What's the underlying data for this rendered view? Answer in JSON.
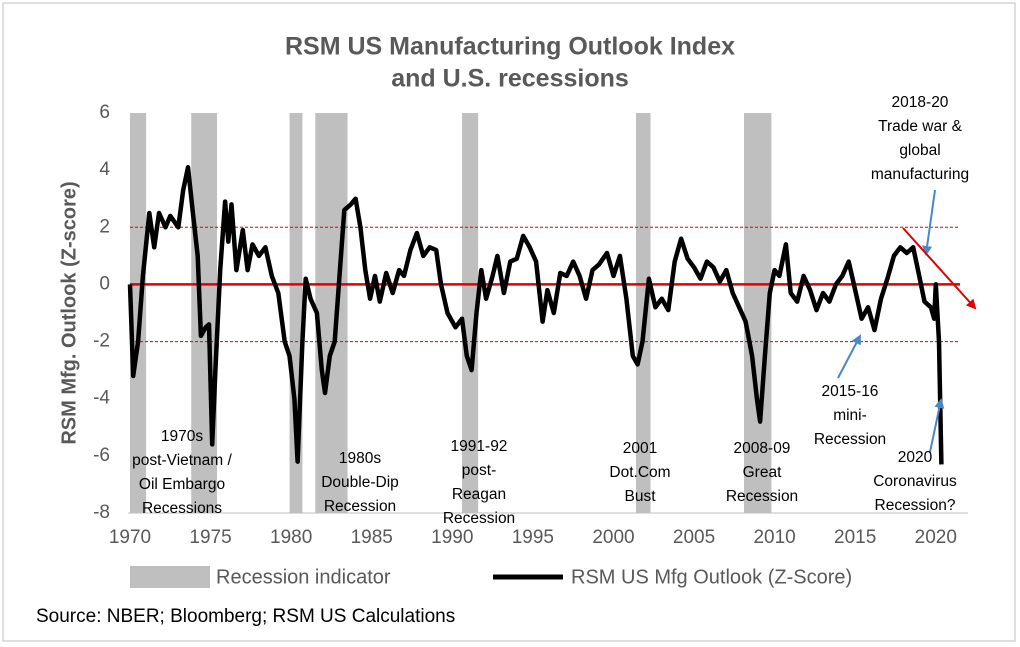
{
  "chart_data": {
    "type": "line",
    "title": [
      "RSM US Manufacturing Outlook Index",
      "and U.S. recessions"
    ],
    "y_label": "RSM Mfg. Outlook (Z-score)",
    "source": "Source: NBER; Bloomberg; RSM US Calculations",
    "xlim": [
      1970,
      2022
    ],
    "xticks": [
      1970,
      1975,
      1980,
      1985,
      1990,
      1995,
      2000,
      2005,
      2010,
      2015,
      2020
    ],
    "ylim": [
      -8,
      6
    ],
    "yticks": [
      -8,
      -6,
      -4,
      -2,
      0,
      2,
      4,
      6
    ],
    "reference_lines": {
      "color": "#e00000",
      "lines": [
        {
          "value": 0,
          "style": "solid"
        },
        {
          "value": 2,
          "style": "dashed"
        },
        {
          "value": -2,
          "style": "dashed"
        }
      ]
    },
    "recessions": {
      "name": "Recession indicator",
      "color": "#bfbfbf",
      "starts": [
        1970.0,
        1973.8,
        1979.9,
        1981.5,
        1990.6,
        2001.4,
        2008.1
      ],
      "ends": [
        1971.0,
        1975.4,
        1980.7,
        1983.5,
        1991.6,
        2002.3,
        2009.8
      ]
    },
    "series": [
      {
        "name": "RSM US Mfg Outlook (Z-Score)",
        "color": "#000000",
        "x": [
          1970.0,
          1970.2,
          1970.5,
          1970.8,
          1971.2,
          1971.5,
          1971.8,
          1972.2,
          1972.5,
          1973.0,
          1973.3,
          1973.6,
          1973.9,
          1974.2,
          1974.4,
          1974.7,
          1974.9,
          1975.1,
          1975.3,
          1975.6,
          1975.9,
          1976.1,
          1976.3,
          1976.6,
          1977.0,
          1977.3,
          1977.6,
          1978.0,
          1978.4,
          1978.8,
          1979.2,
          1979.6,
          1979.9,
          1980.2,
          1980.4,
          1980.7,
          1980.9,
          1981.2,
          1981.6,
          1981.9,
          1982.1,
          1982.4,
          1982.7,
          1983.0,
          1983.3,
          1983.7,
          1984.0,
          1984.3,
          1984.6,
          1984.9,
          1985.2,
          1985.5,
          1985.9,
          1986.3,
          1986.7,
          1987.0,
          1987.4,
          1987.8,
          1988.2,
          1988.6,
          1989.0,
          1989.3,
          1989.7,
          1990.2,
          1990.6,
          1990.9,
          1991.2,
          1991.5,
          1991.8,
          1992.1,
          1992.5,
          1992.8,
          1993.2,
          1993.6,
          1994.0,
          1994.4,
          1994.8,
          1995.2,
          1995.6,
          1995.9,
          1996.3,
          1996.7,
          1997.1,
          1997.5,
          1997.9,
          1998.3,
          1998.7,
          1999.1,
          1999.6,
          2000.0,
          2000.4,
          2000.8,
          2001.2,
          2001.5,
          2001.8,
          2002.2,
          2002.6,
          2003.0,
          2003.4,
          2003.8,
          2004.2,
          2004.6,
          2005.0,
          2005.4,
          2005.8,
          2006.2,
          2006.6,
          2007.0,
          2007.4,
          2007.8,
          2008.2,
          2008.6,
          2008.9,
          2009.1,
          2009.4,
          2009.7,
          2010.0,
          2010.3,
          2010.7,
          2011.0,
          2011.4,
          2011.8,
          2012.2,
          2012.6,
          2013.0,
          2013.4,
          2013.8,
          2014.2,
          2014.6,
          2015.0,
          2015.4,
          2015.8,
          2016.2,
          2016.6,
          2017.0,
          2017.4,
          2017.8,
          2018.2,
          2018.6,
          2018.9,
          2019.3,
          2019.7,
          2019.9,
          2020.0,
          2020.2,
          2020.35
        ],
        "values": [
          0,
          -3.2,
          -2.0,
          0.3,
          2.5,
          1.3,
          2.5,
          2.0,
          2.4,
          2.0,
          3.3,
          4.1,
          2.5,
          1.0,
          -1.8,
          -1.5,
          -1.4,
          -5.6,
          -3.0,
          0.5,
          2.9,
          1.5,
          2.8,
          0.5,
          1.9,
          0.5,
          1.4,
          1.0,
          1.3,
          0.3,
          -0.3,
          -2.0,
          -2.5,
          -4.0,
          -6.2,
          -2.0,
          0.2,
          -0.5,
          -1.0,
          -3.0,
          -3.8,
          -2.5,
          -2.0,
          0.3,
          2.6,
          2.8,
          3.0,
          2.0,
          0.5,
          -0.5,
          0.3,
          -0.6,
          0.4,
          -0.3,
          0.5,
          0.3,
          1.2,
          1.8,
          1.0,
          1.3,
          1.2,
          0.0,
          -1.0,
          -1.5,
          -1.2,
          -2.5,
          -3.0,
          -1.0,
          0.5,
          -0.5,
          0.3,
          1.0,
          -0.3,
          0.8,
          0.9,
          1.7,
          1.3,
          0.8,
          -1.3,
          -0.2,
          -1.0,
          0.4,
          0.3,
          0.8,
          0.3,
          -0.5,
          0.5,
          0.7,
          1.1,
          0.3,
          1.0,
          -0.5,
          -2.5,
          -2.8,
          -2.0,
          0.2,
          -0.8,
          -0.5,
          -0.9,
          0.8,
          1.6,
          0.9,
          0.6,
          0.2,
          0.8,
          0.6,
          0.1,
          0.5,
          -0.3,
          -0.8,
          -1.3,
          -2.5,
          -4.0,
          -4.8,
          -2.5,
          -0.3,
          0.5,
          0.3,
          1.4,
          -0.3,
          -0.6,
          0.3,
          -0.2,
          -0.9,
          -0.3,
          -0.6,
          0.0,
          0.3,
          0.8,
          -0.2,
          -1.2,
          -0.8,
          -1.6,
          -0.5,
          0.2,
          1.0,
          1.3,
          1.1,
          1.3,
          0.5,
          -0.6,
          -0.8,
          -1.2,
          0.0,
          -2.0,
          -6.3
        ]
      }
    ],
    "annotations": [
      {
        "lines": [
          "1970s",
          "post-Vietnam /",
          "Oil Embargo",
          "Recessions"
        ]
      },
      {
        "lines": [
          "1980s",
          "Double-Dip",
          "Recession"
        ]
      },
      {
        "lines": [
          "1991-92",
          "post-",
          "Reagan",
          "Recession"
        ]
      },
      {
        "lines": [
          "2001",
          "Dot.Com",
          "Bust"
        ]
      },
      {
        "lines": [
          "2008-09",
          "Great",
          "Recession"
        ]
      },
      {
        "lines": [
          "2015-16",
          "mini-",
          "Recession"
        ]
      },
      {
        "lines": [
          "2020",
          "Coronavirus",
          "Recession?"
        ]
      },
      {
        "lines": [
          "2018-20",
          "Trade war &",
          "global",
          "manufacturing"
        ]
      }
    ]
  }
}
